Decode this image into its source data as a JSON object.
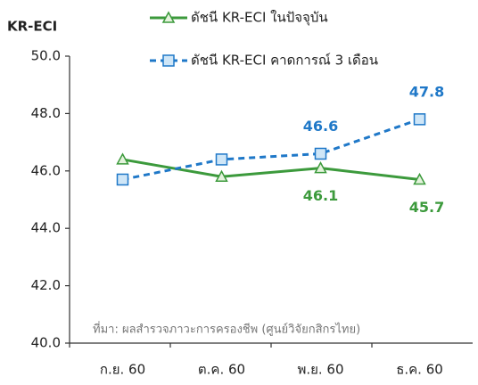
{
  "chart_data": {
    "type": "line",
    "y_axis_label": "KR-ECI",
    "annotation": "ที่มา: ผลสำรวจภาวะการครองชีพ (ศูนย์วิจัยกสิกรไทย)",
    "categories": [
      "ก.ย. 60",
      "ต.ค. 60",
      "พ.ย. 60",
      "ธ.ค. 60"
    ],
    "series": [
      {
        "name": "ดัชนี KR-ECI ในปัจจุบัน",
        "color": "#3c9a3c",
        "marker": "triangle",
        "dashed": false,
        "values": [
          46.4,
          45.8,
          46.1,
          45.7
        ],
        "value_labels": [
          null,
          null,
          "46.1",
          "45.7"
        ]
      },
      {
        "name": "ดัชนี KR-ECI คาดการณ์ 3 เดือน",
        "color": "#1f78c8",
        "marker": "square",
        "dashed": true,
        "values": [
          45.7,
          46.4,
          46.6,
          47.8
        ],
        "value_labels": [
          null,
          null,
          "46.6",
          "47.8"
        ]
      }
    ],
    "ylim": [
      40,
      50
    ],
    "yticks": [
      {
        "value": 40,
        "label": "40.0"
      },
      {
        "value": 42,
        "label": "42.0"
      },
      {
        "value": 44,
        "label": "44.0"
      },
      {
        "value": 46,
        "label": "46.0"
      },
      {
        "value": 48,
        "label": "48.0"
      },
      {
        "value": 50,
        "label": "50.0"
      }
    ]
  }
}
